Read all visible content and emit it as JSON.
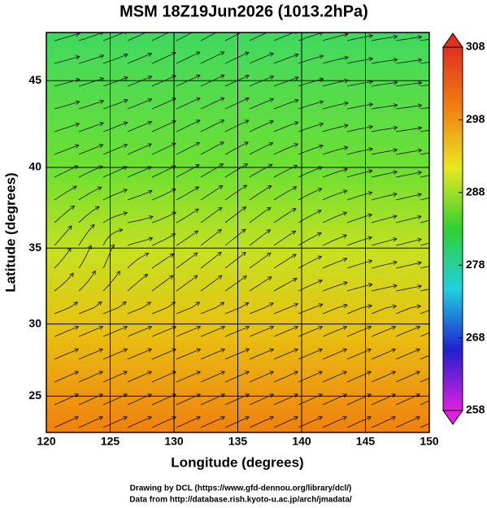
{
  "chart_data": {
    "type": "map",
    "title": "MSM 18Z19Jun2026 (1013.2hPa)",
    "xlabel": "Longitude (degrees)",
    "ylabel": "Latitude  (degrees)",
    "xlim": [
      120,
      150
    ],
    "ylim": [
      22.4,
      47.6
    ],
    "xticks": [
      120,
      125,
      130,
      135,
      140,
      145,
      150
    ],
    "yticks": [
      25,
      30,
      35,
      40,
      45
    ],
    "projection": "mercator",
    "grid": true,
    "colorbar": {
      "lim": [
        258,
        308
      ],
      "ticks": [
        308,
        298,
        288,
        278,
        268,
        258
      ],
      "colors": [
        "#e020e0",
        "#2020d0",
        "#20d0e0",
        "#30d030",
        "#e8e820",
        "#f08010",
        "#e03020"
      ]
    },
    "credits": [
      "Drawing by DCL (https://www.gfd-dennou.org/library/dcl/)",
      "Data from http://database.rish.kyoto-u.ac.jp/arch/jmadata/"
    ]
  }
}
